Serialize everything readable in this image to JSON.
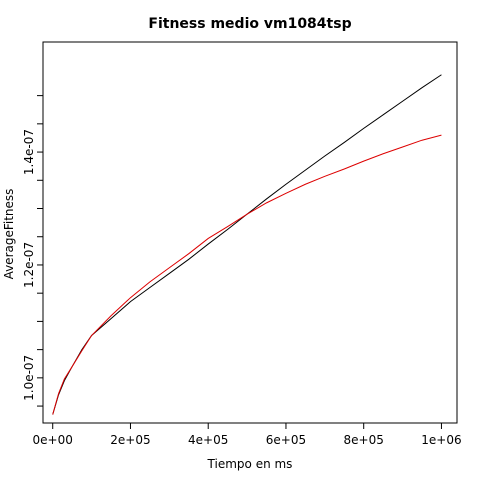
{
  "chart_data": {
    "type": "line",
    "title": "Fitness medio vm1084tsp",
    "xlabel": "Tiempo en ms",
    "ylabel": "AverageFitness",
    "xlim": [
      -25000,
      1040000
    ],
    "ylim": [
      9.2e-08,
      1.595e-07
    ],
    "xticks": [
      0,
      200000,
      400000,
      600000,
      800000,
      1000000
    ],
    "xtick_labels": [
      "0e+00",
      "2e+05",
      "4e+05",
      "6e+05",
      "8e+05",
      "1e+06"
    ],
    "yticks": [
      9.5e-08,
      1e-07,
      1.05e-07,
      1.1e-07,
      1.15e-07,
      1.2e-07,
      1.25e-07,
      1.3e-07,
      1.35e-07,
      1.4e-07,
      1.45e-07,
      1.5e-07
    ],
    "ytick_labels": [
      "",
      "1.0e-07",
      "",
      "",
      "",
      "1.2e-07",
      "",
      "",
      "",
      "1.4e-07",
      "",
      ""
    ],
    "grid": false,
    "legend": "none",
    "colors": {
      "series_1": "#000000",
      "series_2": "#dd0000"
    },
    "series": [
      {
        "color": "#000000",
        "x": [
          0,
          15000,
          30000,
          50000,
          75000,
          100000,
          150000,
          200000,
          250000,
          300000,
          350000,
          400000,
          450000,
          500000,
          550000,
          600000,
          650000,
          700000,
          750000,
          800000,
          850000,
          900000,
          950000,
          1000000
        ],
        "y": [
          9.35e-08,
          9.7e-08,
          9.95e-08,
          1.02e-07,
          1.05e-07,
          1.075e-07,
          1.105e-07,
          1.135e-07,
          1.16e-07,
          1.185e-07,
          1.21e-07,
          1.237e-07,
          1.263e-07,
          1.29e-07,
          1.317e-07,
          1.343e-07,
          1.368e-07,
          1.393e-07,
          1.417e-07,
          1.442e-07,
          1.466e-07,
          1.49e-07,
          1.514e-07,
          1.537e-07
        ]
      },
      {
        "color": "#dd0000",
        "x": [
          0,
          15000,
          30000,
          50000,
          75000,
          100000,
          150000,
          200000,
          250000,
          300000,
          350000,
          400000,
          450000,
          500000,
          550000,
          600000,
          650000,
          700000,
          750000,
          800000,
          850000,
          900000,
          950000,
          1000000
        ],
        "y": [
          9.35e-08,
          9.72e-08,
          9.98e-08,
          1.02e-07,
          1.048e-07,
          1.075e-07,
          1.11e-07,
          1.142e-07,
          1.17e-07,
          1.195e-07,
          1.22e-07,
          1.247e-07,
          1.268e-07,
          1.29e-07,
          1.31e-07,
          1.327e-07,
          1.343e-07,
          1.357e-07,
          1.37e-07,
          1.384e-07,
          1.397e-07,
          1.409e-07,
          1.421e-07,
          1.43e-07
        ]
      }
    ]
  }
}
